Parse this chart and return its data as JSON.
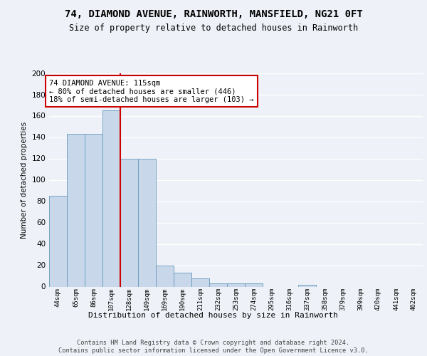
{
  "title": "74, DIAMOND AVENUE, RAINWORTH, MANSFIELD, NG21 0FT",
  "subtitle": "Size of property relative to detached houses in Rainworth",
  "xlabel": "Distribution of detached houses by size in Rainworth",
  "ylabel": "Number of detached properties",
  "bar_labels": [
    "44sqm",
    "65sqm",
    "86sqm",
    "107sqm",
    "128sqm",
    "149sqm",
    "169sqm",
    "190sqm",
    "211sqm",
    "232sqm",
    "253sqm",
    "274sqm",
    "295sqm",
    "316sqm",
    "337sqm",
    "358sqm",
    "379sqm",
    "399sqm",
    "420sqm",
    "441sqm",
    "462sqm"
  ],
  "bar_values": [
    85,
    143,
    143,
    165,
    120,
    120,
    20,
    13,
    8,
    3,
    3,
    3,
    0,
    0,
    2,
    0,
    0,
    0,
    0,
    0,
    0
  ],
  "bar_color": "#c8d8ea",
  "bar_edge_color": "#6699bb",
  "vline_x": 3.5,
  "vline_color": "#cc0000",
  "ylim": [
    0,
    200
  ],
  "yticks": [
    0,
    20,
    40,
    60,
    80,
    100,
    120,
    140,
    160,
    180,
    200
  ],
  "annotation_text": "74 DIAMOND AVENUE: 115sqm\n← 80% of detached houses are smaller (446)\n18% of semi-detached houses are larger (103) →",
  "annotation_box_color": "#ffffff",
  "annotation_box_edge": "#cc0000",
  "footer_text": "Contains HM Land Registry data © Crown copyright and database right 2024.\nContains public sector information licensed under the Open Government Licence v3.0.",
  "background_color": "#eef2f8",
  "grid_color": "#ffffff"
}
